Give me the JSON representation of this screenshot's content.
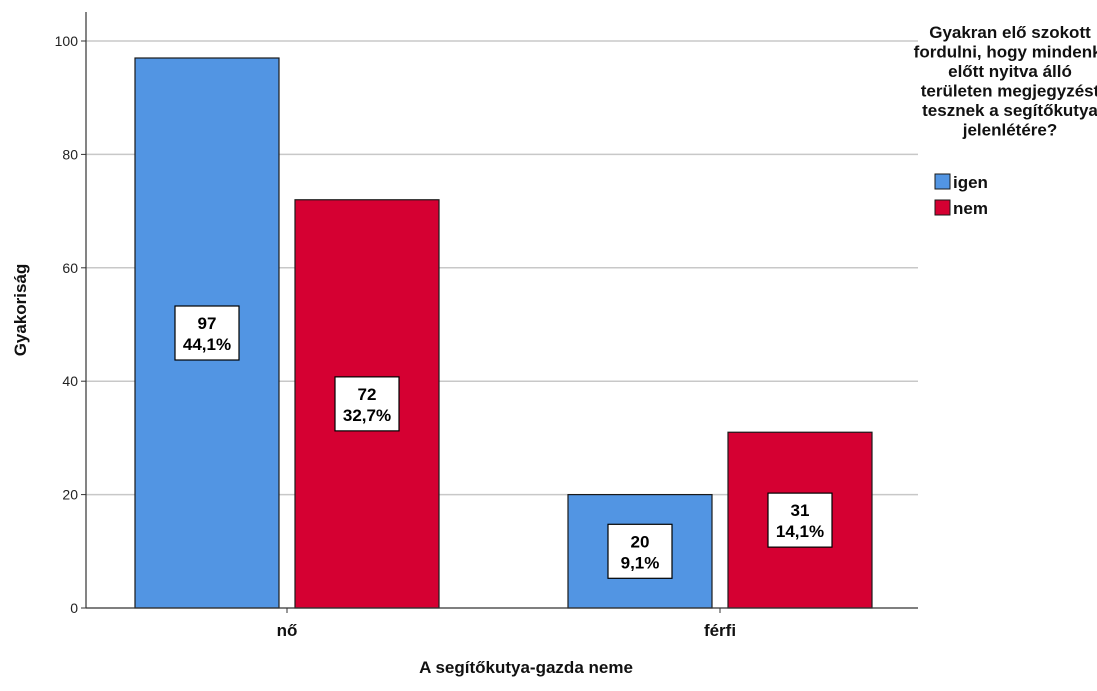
{
  "chart_data": {
    "type": "bar",
    "categories": [
      "nő",
      "férfi"
    ],
    "series": [
      {
        "name": "igen",
        "values": [
          97,
          20
        ],
        "percent_labels": [
          "44,1%",
          "9,1%"
        ],
        "color": "#5295e3"
      },
      {
        "name": "nem",
        "values": [
          72,
          31
        ],
        "percent_labels": [
          "32,7%",
          "14,1%"
        ],
        "color": "#d50032"
      }
    ],
    "xlabel": "A segítőkutya-gazda neme",
    "ylabel": "Gyakoriság",
    "ylim": [
      0,
      100
    ],
    "yticks": [
      0,
      20,
      40,
      60,
      80,
      100
    ],
    "grid": true,
    "legend_position": "top-right",
    "legend_title_lines": [
      "Gyakran elő szokott",
      "fordulni, hogy mindenki",
      "előtt nyitva álló",
      "területen megjegyzést",
      "tesznek a segítőkutya",
      "jelenlétére?"
    ]
  }
}
